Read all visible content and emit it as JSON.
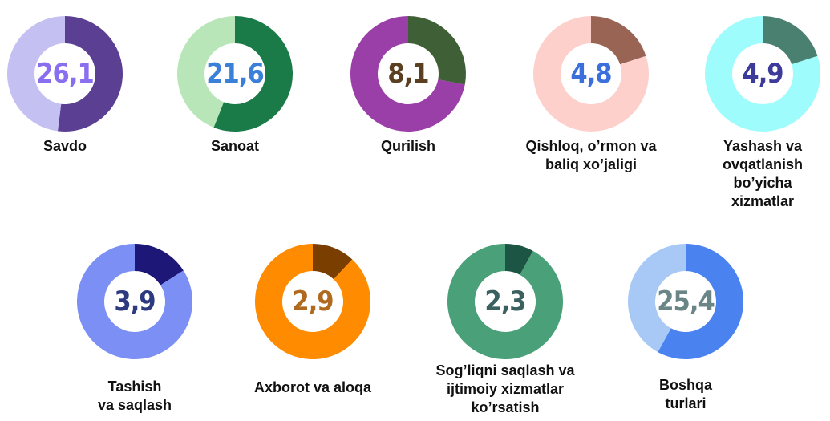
{
  "chart_data": [
    {
      "type": "donut",
      "title": [
        "Savdo"
      ],
      "center": {
        "value": 26.1,
        "label": "26,1"
      },
      "values": [
        52,
        48
      ],
      "colors": [
        "#5b3f92",
        "#c5c0f2"
      ],
      "center_color": "#8a6ef0"
    },
    {
      "type": "donut",
      "title": [
        "Sanoat"
      ],
      "center": {
        "value": 21.6,
        "label": "21,6"
      },
      "values": [
        56,
        44
      ],
      "colors": [
        "#1a7a48",
        "#b8e6b8"
      ],
      "center_color": "#3a7fd8"
    },
    {
      "type": "donut",
      "title": [
        "Qurilish"
      ],
      "center": {
        "value": 8.1,
        "label": "8,1"
      },
      "values": [
        28,
        72
      ],
      "colors": [
        "#3f5f36",
        "#9b3fa8"
      ],
      "center_color": "#5a4020"
    },
    {
      "type": "donut",
      "title": [
        "Qishloq, o’rmon va",
        "baliq xo’jaligi"
      ],
      "center": {
        "value": 4.8,
        "label": "4,8"
      },
      "values": [
        20,
        80
      ],
      "colors": [
        "#9a6455",
        "#fdd0cc"
      ],
      "center_color": "#3a6fdc"
    },
    {
      "type": "donut",
      "title": [
        "Yashash va",
        "ovqatlanish",
        "bo’yicha",
        "xizmatlar"
      ],
      "center": {
        "value": 4.9,
        "label": "4,9"
      },
      "values": [
        20,
        80
      ],
      "colors": [
        "#4a8070",
        "#9ffcfc"
      ],
      "center_color": "#3c3a9a"
    },
    {
      "type": "donut",
      "title": [
        "Tashish",
        "va saqlash"
      ],
      "center": {
        "value": 3.9,
        "label": "3,9"
      },
      "values": [
        16,
        84
      ],
      "colors": [
        "#1d1878",
        "#7b8ff5"
      ],
      "center_color": "#2d3a80"
    },
    {
      "type": "donut",
      "title": [
        "Axborot va aloqa"
      ],
      "center": {
        "value": 2.9,
        "label": "2,9"
      },
      "values": [
        12,
        88
      ],
      "colors": [
        "#7a3e00",
        "#ff8c00"
      ],
      "center_color": "#b06a20"
    },
    {
      "type": "donut",
      "title": [
        "Sog’liqni saqlash va",
        "ijtimoiy xizmatlar",
        "ko’rsatish"
      ],
      "center": {
        "value": 2.3,
        "label": "2,3"
      },
      "values": [
        8,
        92
      ],
      "colors": [
        "#1d5545",
        "#4aa078"
      ],
      "center_color": "#3a6060"
    },
    {
      "type": "donut",
      "title": [
        "Boshqa",
        "turlari"
      ],
      "center": {
        "value": 25.4,
        "label": "25,4"
      },
      "values": [
        58,
        42
      ],
      "colors": [
        "#4a82f0",
        "#a8c8f5"
      ],
      "center_color": "#6a8585"
    }
  ]
}
